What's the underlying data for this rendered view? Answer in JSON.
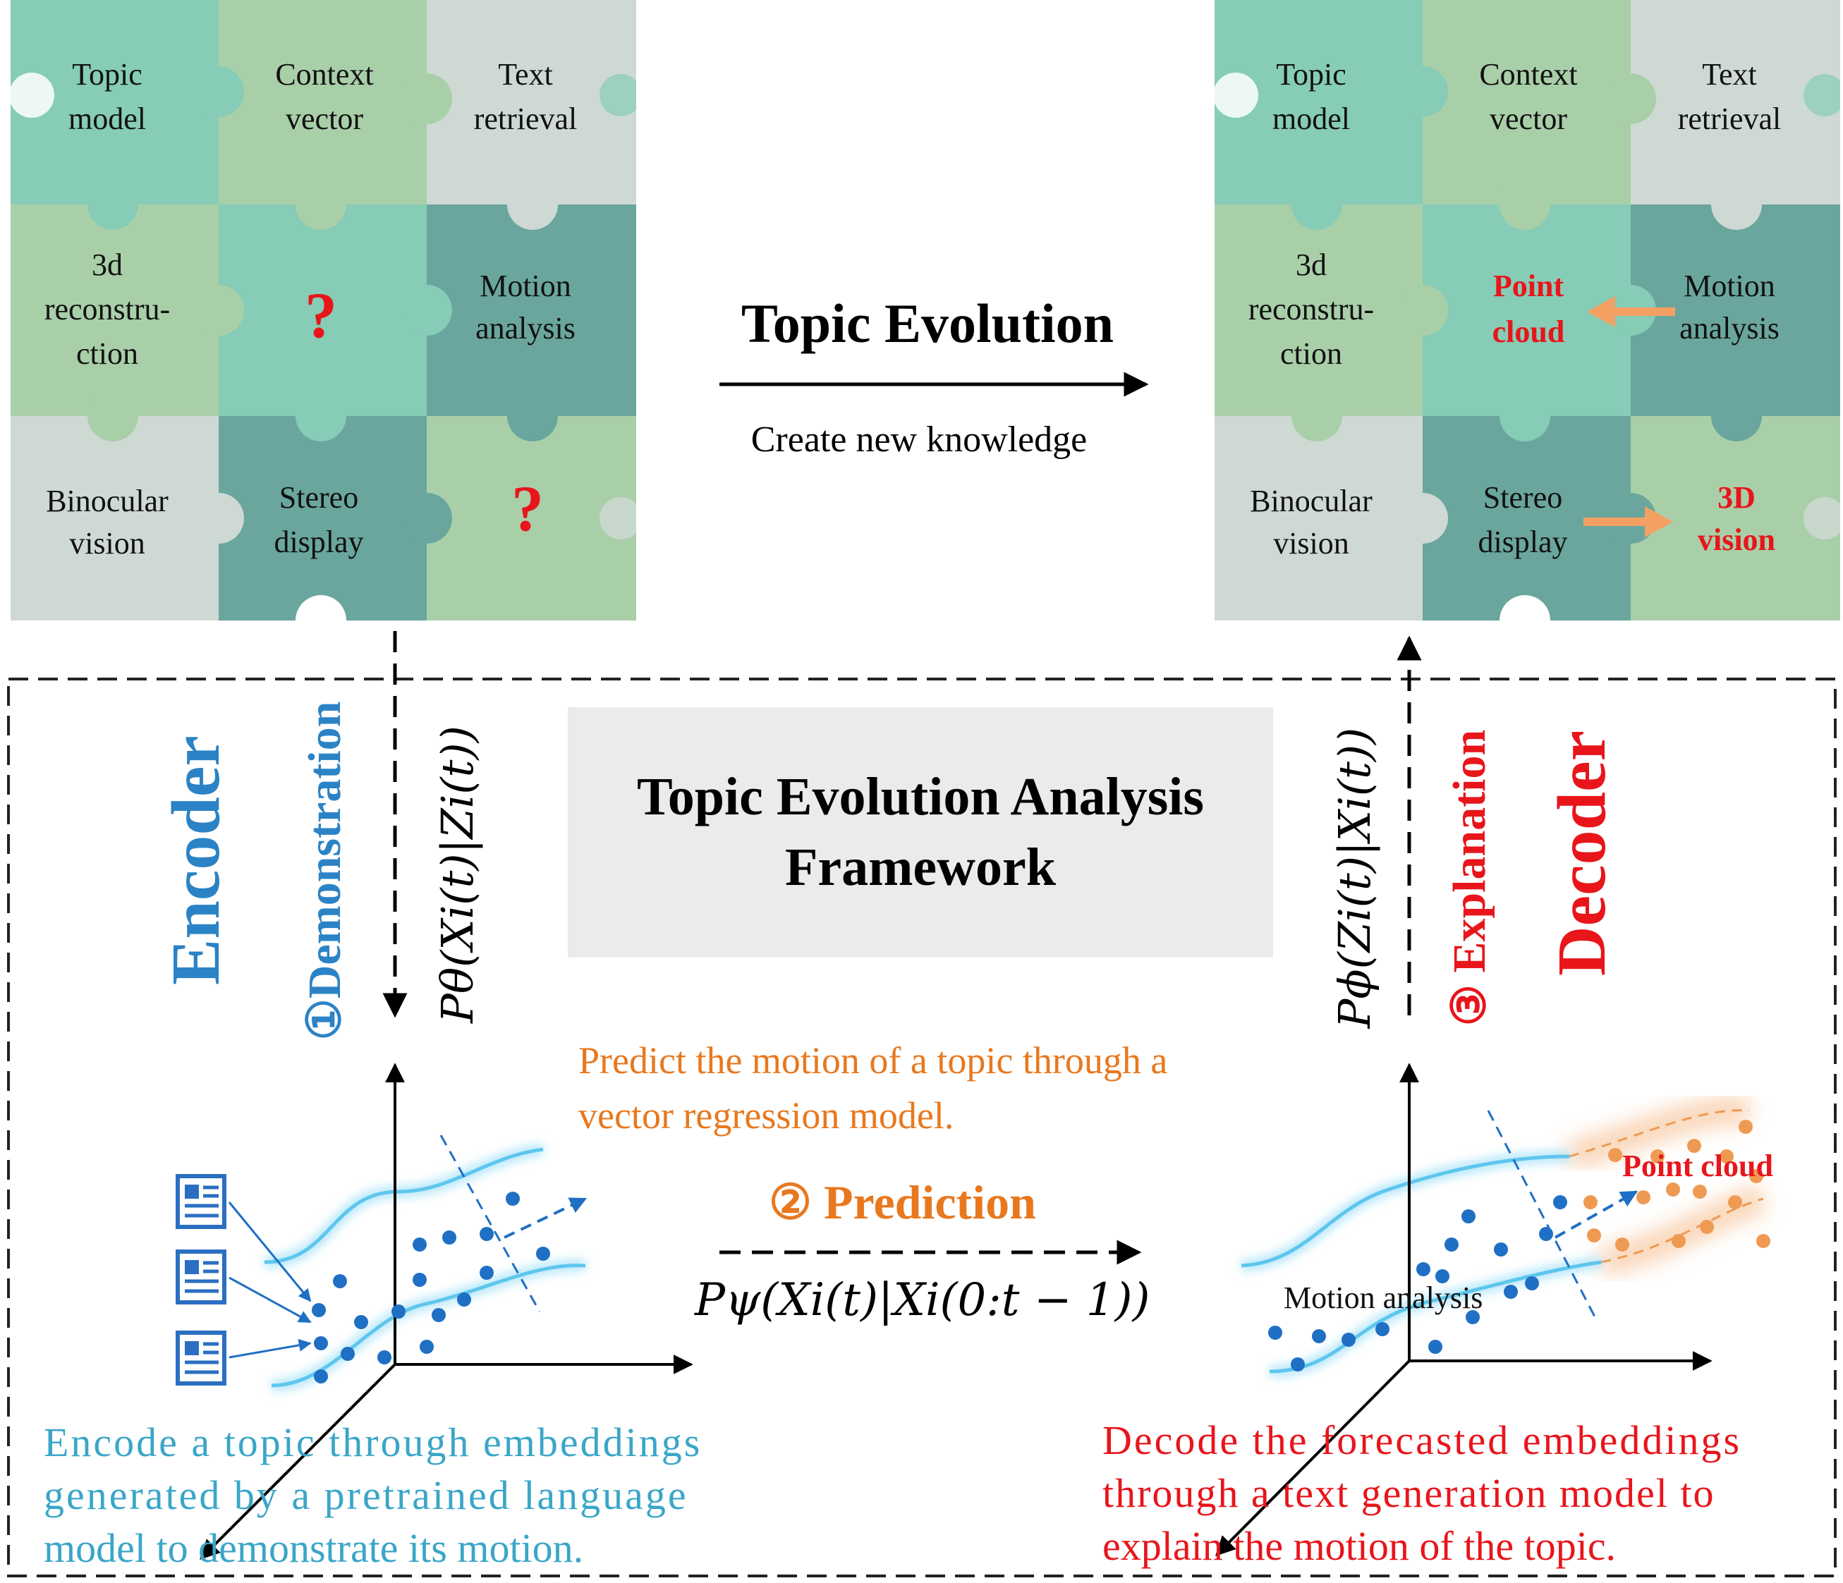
{
  "colors": {
    "encoder": "#2b83c6",
    "decoder": "#e8151b",
    "prediction": "#e8781e",
    "encode_text": "#3aa6c8",
    "dots": "#1f6fc4",
    "orange_dots": "#ef9a52",
    "band": "#5ec6ee",
    "center_box": "#ebebeb",
    "tile_a": "#86ccb6",
    "tile_b": "#a9cfa9",
    "tile_c": "#cfd9d4",
    "tile_d": "#6aa69d"
  },
  "left_puzzle": {
    "topic_model": "Topic\nmodel",
    "context_vector": "Context\nvector",
    "text_retrieval": "Text\nretrieval",
    "reconstruction": "3d\nreconstru-\nction",
    "unknown_1": "?",
    "motion_analysis": "Motion\nanalysis",
    "binocular_vision": "Binocular\nvision",
    "stereo_display": "Stereo\ndisplay",
    "unknown_2": "?"
  },
  "right_puzzle": {
    "topic_model": "Topic\nmodel",
    "context_vector": "Context\nvector",
    "text_retrieval": "Text\nretrieval",
    "reconstruction": "3d\nreconstru-\nction",
    "point_cloud": "Point\ncloud",
    "motion_analysis": "Motion\nanalysis",
    "binocular_vision": "Binocular\nvision",
    "stereo_display": "Stereo\ndisplay",
    "vision_3d": "3D\nvision"
  },
  "evolution": {
    "title": "Topic Evolution",
    "subtitle": "Create new knowledge"
  },
  "framework": {
    "title_line1": "Topic Evolution Analysis",
    "title_line2": "Framework"
  },
  "encoder": {
    "label": "Encoder",
    "step": "①Demonstration",
    "formula": "Pθ(Xi(t)|Zi(t))",
    "description_line1": "Encode a topic through embeddings",
    "description_line2": "generated by a pretrained language",
    "description_line3": "model to demonstrate its motion."
  },
  "decoder": {
    "label": "Decoder",
    "step": "③ Explanation",
    "formula": "Pϕ(Zi(t)|Xi(t))",
    "description_line1": "Decode the forecasted embeddings",
    "description_line2": "through a text generation model to",
    "description_line3": "explain the motion of the topic.",
    "plot_point_cloud": "Point cloud",
    "plot_motion_analysis": "Motion analysis"
  },
  "prediction": {
    "description_line1": "Predict the motion of a topic through a",
    "description_line2": "vector regression model.",
    "step": "② Prediction",
    "formula": "Pψ(Xi(t)|Xi(0:t − 1))"
  }
}
